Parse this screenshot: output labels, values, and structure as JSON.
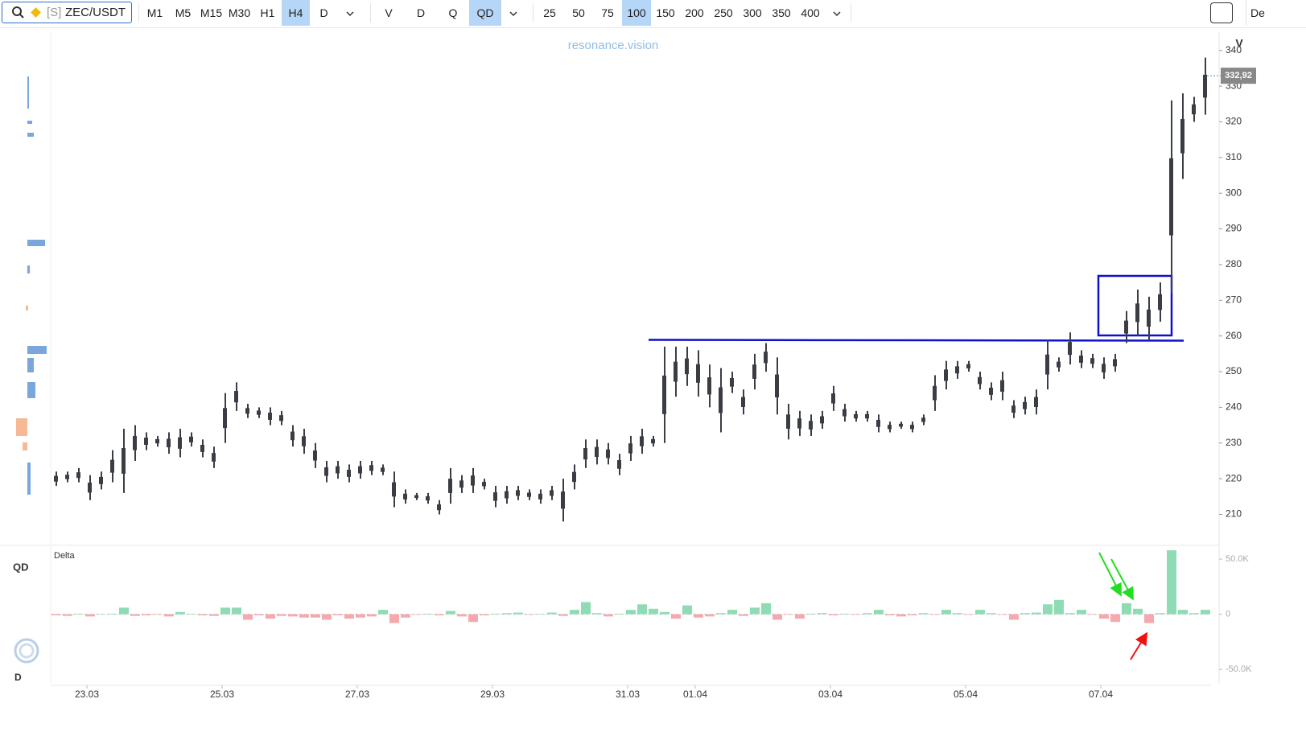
{
  "toolbar": {
    "symbol_prefix": "[S]",
    "symbol": "ZEC/USDT",
    "timeframes": [
      "M1",
      "M5",
      "M15",
      "M30",
      "H1",
      "H4",
      "D"
    ],
    "active_timeframe": "H4",
    "modes": [
      "V",
      "D",
      "Q",
      "QD"
    ],
    "active_mode": "QD",
    "counts": [
      "25",
      "50",
      "75",
      "100",
      "150",
      "200",
      "250",
      "300",
      "350",
      "400"
    ],
    "active_count": "100",
    "right_text": "De"
  },
  "panel_labels": {
    "top": "QD",
    "bottom": "D"
  },
  "chart_data": [
    {
      "type": "range",
      "watermark": "resonance.vision",
      "axis_title": "V",
      "color": "#3a3d44",
      "high": [
        222,
        222,
        223,
        221,
        222,
        228,
        234,
        235,
        233,
        232,
        233,
        234,
        233,
        231,
        229,
        244,
        247,
        241,
        240,
        240,
        239,
        235,
        234,
        230,
        225,
        225,
        224,
        225,
        225,
        224,
        222,
        217,
        216,
        216,
        214,
        223,
        221,
        223,
        220,
        218,
        218,
        218,
        217,
        217,
        218,
        220,
        224,
        231,
        231,
        230,
        227,
        232,
        234,
        232,
        257,
        257,
        257,
        256,
        252,
        251,
        250,
        245,
        255,
        258,
        254,
        241,
        239,
        238,
        239,
        246,
        241,
        239,
        239,
        238,
        236,
        236,
        236,
        238,
        249,
        253,
        253,
        253,
        250,
        247,
        250,
        242,
        243,
        245,
        259,
        254,
        261,
        256,
        255,
        254,
        255,
        267,
        273,
        271,
        275,
        326,
        328,
        327,
        338
      ],
      "low": [
        218,
        219,
        219,
        214,
        217,
        219,
        216,
        225,
        228,
        229,
        227,
        226,
        229,
        226,
        223,
        230,
        239,
        237,
        237,
        235,
        235,
        229,
        227,
        223,
        219,
        220,
        219,
        220,
        221,
        221,
        212,
        213,
        214,
        213,
        210,
        213,
        216,
        216,
        217,
        212,
        213,
        214,
        214,
        213,
        214,
        208,
        217,
        223,
        224,
        224,
        221,
        225,
        227,
        229,
        230,
        243,
        246,
        243,
        240,
        233,
        244,
        238,
        245,
        250,
        238,
        231,
        232,
        232,
        234,
        239,
        236,
        236,
        236,
        233,
        233,
        234,
        233,
        235,
        239,
        245,
        248,
        250,
        245,
        242,
        242,
        237,
        238,
        238,
        245,
        250,
        252,
        251,
        251,
        248,
        250,
        258,
        260,
        259,
        264,
        272,
        304,
        320,
        322
      ],
      "ylim": [
        202,
        344
      ],
      "yticks": [
        210,
        220,
        230,
        240,
        250,
        260,
        270,
        280,
        290,
        300,
        310,
        320,
        330,
        340
      ],
      "last_price": {
        "value": 332.92,
        "label": "332,92"
      }
    },
    {
      "type": "bar",
      "title": "Delta",
      "positive_color": "#8fdcb4",
      "negative_color": "#f5a8ae",
      "categories": [
        null,
        null,
        null,
        "23.03",
        null,
        null,
        null,
        null,
        null,
        null,
        null,
        null,
        null,
        null,
        null,
        "25.03",
        null,
        null,
        null,
        null,
        null,
        null,
        null,
        null,
        null,
        null,
        null,
        "27.03",
        null,
        null,
        null,
        null,
        null,
        null,
        null,
        null,
        null,
        null,
        null,
        "29.03",
        null,
        null,
        null,
        null,
        null,
        null,
        null,
        null,
        null,
        null,
        null,
        "31.03",
        null,
        null,
        null,
        null,
        null,
        "01.04",
        null,
        null,
        null,
        null,
        null,
        null,
        null,
        null,
        null,
        null,
        null,
        "03.04",
        null,
        null,
        null,
        null,
        null,
        null,
        null,
        null,
        null,
        null,
        null,
        "05.04",
        null,
        null,
        null,
        null,
        null,
        null,
        null,
        null,
        null,
        null,
        null,
        "07.04",
        null,
        null,
        null,
        null,
        null,
        null,
        null,
        null,
        null
      ],
      "values": [
        -1000,
        -1500,
        500,
        -2000,
        300,
        500,
        6000,
        -1500,
        -1000,
        -500,
        -2000,
        2000,
        500,
        -1000,
        -1500,
        6000,
        6000,
        -5000,
        -1000,
        -4000,
        -1500,
        -2000,
        -3000,
        -3000,
        -5000,
        -1000,
        -4000,
        -3000,
        -2000,
        4000,
        -8000,
        -3000,
        -500,
        500,
        -1000,
        3000,
        -2000,
        -7000,
        -1000,
        500,
        1000,
        1500,
        -500,
        300,
        1500,
        -1500,
        4000,
        11000,
        1000,
        -2000,
        500,
        4000,
        9000,
        5000,
        2000,
        -4000,
        8000,
        -3000,
        -2000,
        1000,
        4000,
        -1500,
        6000,
        10000,
        -5000,
        -500,
        -4000,
        500,
        1000,
        -1000,
        500,
        -500,
        1000,
        4000,
        -1000,
        -2000,
        -1000,
        1000,
        -500,
        4000,
        1000,
        -500,
        4000,
        1000,
        -500,
        -5000,
        1000,
        1500,
        9000,
        13000,
        1000,
        4000,
        -500,
        -4000,
        -7000,
        10000,
        5000,
        -8000,
        1000,
        58000,
        4000,
        1000,
        4000
      ],
      "ylim": [
        -63000,
        61000
      ],
      "yticks": [
        {
          "value": -50000,
          "label": "-50.0K"
        },
        0,
        {
          "value": 50000,
          "label": "50.0K"
        }
      ]
    }
  ]
}
